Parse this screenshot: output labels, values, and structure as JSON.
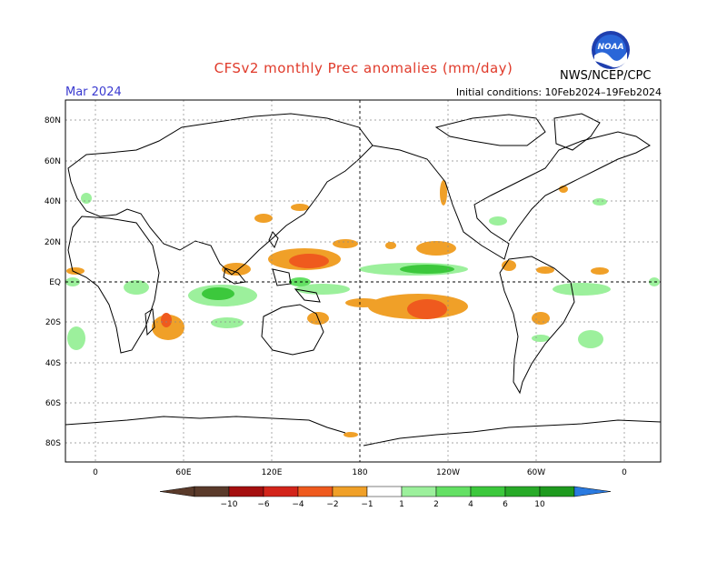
{
  "title": "CFSv2 monthly Prec anomalies (mm/day)",
  "month": "Mar 2024",
  "initial_conditions": "Initial conditions: 10Feb2024–19Feb2024",
  "agency": "NWS/NCEP/CPC",
  "logo_text": "NOAA",
  "lat_labels": [
    "80N",
    "60N",
    "40N",
    "20N",
    "EQ",
    "20S",
    "40S",
    "60S",
    "80S"
  ],
  "lon_labels": [
    "0",
    "60E",
    "120E",
    "180",
    "120W",
    "60W",
    "0"
  ],
  "colorbar": {
    "tick_labels": [
      "-10",
      "-6",
      "-4",
      "-2",
      "-1",
      "1",
      "2",
      "4",
      "6",
      "10"
    ],
    "neg_colors": [
      "#5a3a2a",
      "#a50f0f",
      "#d3241a",
      "#ef5a1e",
      "#f0a028"
    ],
    "pos_colors": [
      "#9cf09c",
      "#64e064",
      "#3cc83c",
      "#28aa28",
      "#1e9a1e"
    ],
    "under_color": "#5a3a2a",
    "over_color": "#2a7ae0"
  }
}
